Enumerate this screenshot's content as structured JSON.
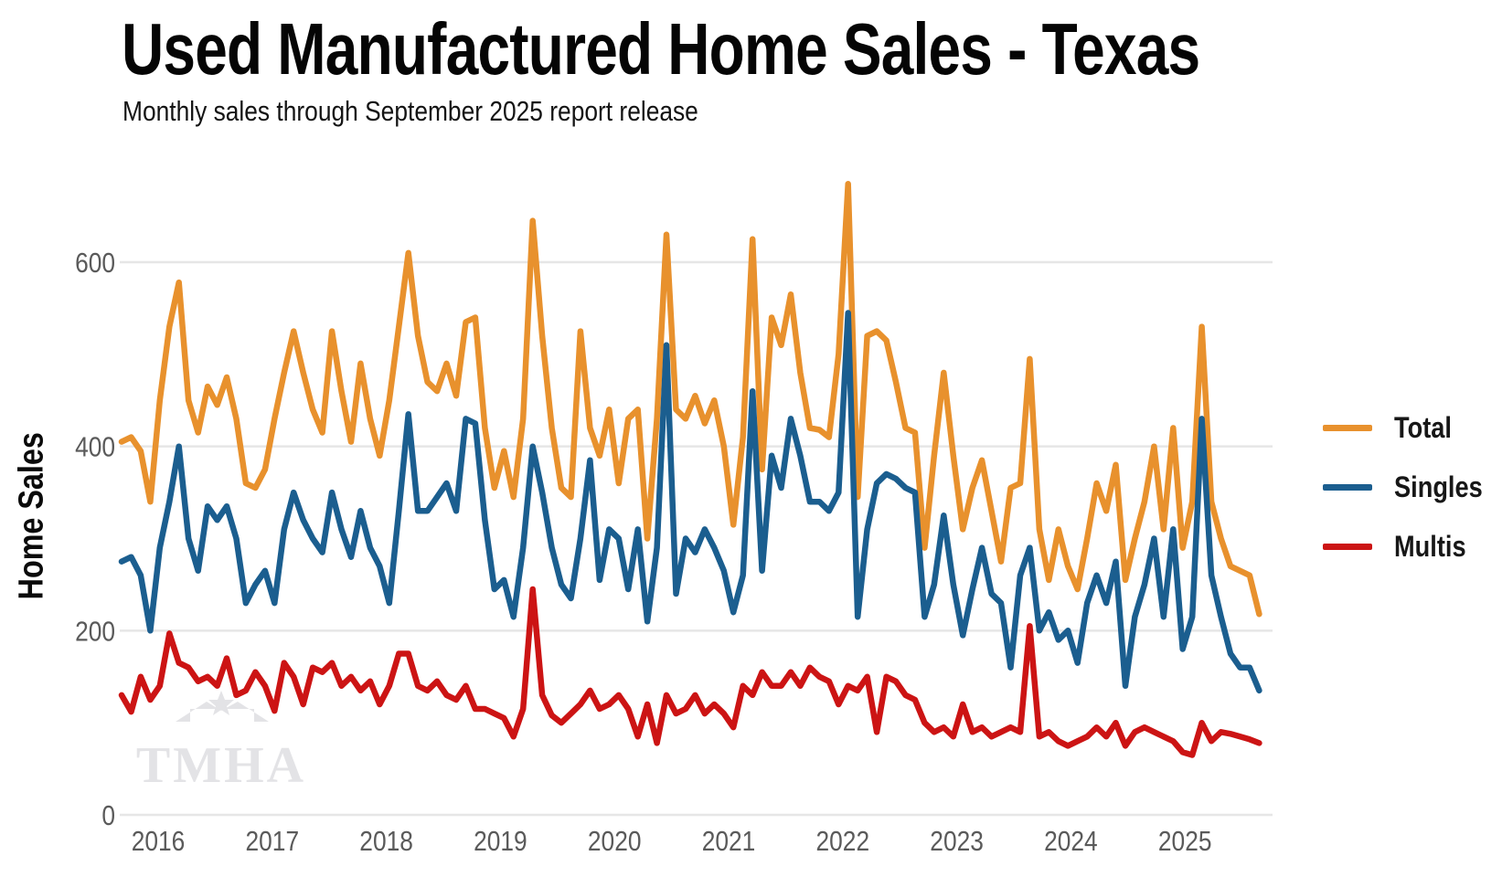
{
  "header": {
    "title": "Used Manufactured Home Sales - Texas",
    "subtitle": "Monthly sales through September 2025 report release"
  },
  "watermark": "TMHA",
  "chart_data": {
    "type": "line",
    "title": "Used Manufactured Home Sales - Texas",
    "subtitle": "Monthly sales through September 2025 report release",
    "xlabel": "",
    "ylabel": "Home Sales",
    "x_start": "2015-09",
    "x_end": "2025-08",
    "frequency": "monthly",
    "x_tick_labels": [
      "2016",
      "2017",
      "2018",
      "2019",
      "2020",
      "2021",
      "2022",
      "2023",
      "2024",
      "2025"
    ],
    "y_ticks": [
      0,
      200,
      400,
      600
    ],
    "ylim": [
      0,
      700
    ],
    "grid": "horizontal-only",
    "legend_position": "right",
    "series": [
      {
        "name": "Total",
        "color": "#E8912D",
        "values": [
          405,
          410,
          395,
          340,
          450,
          530,
          578,
          450,
          415,
          465,
          445,
          475,
          430,
          360,
          355,
          375,
          430,
          480,
          525,
          480,
          440,
          415,
          525,
          460,
          405,
          490,
          430,
          390,
          450,
          530,
          610,
          520,
          470,
          460,
          490,
          455,
          535,
          540,
          420,
          355,
          395,
          345,
          430,
          645,
          520,
          420,
          355,
          345,
          525,
          420,
          390,
          440,
          360,
          430,
          440,
          300,
          430,
          630,
          440,
          430,
          455,
          425,
          450,
          400,
          315,
          410,
          625,
          375,
          540,
          510,
          565,
          480,
          420,
          418,
          410,
          500,
          685,
          345,
          520,
          525,
          515,
          470,
          420,
          415,
          290,
          390,
          480,
          390,
          310,
          355,
          385,
          330,
          275,
          355,
          360,
          495,
          310,
          255,
          310,
          270,
          245,
          300,
          360,
          330,
          380,
          255,
          300,
          340,
          400,
          310,
          420,
          290,
          340,
          530,
          340,
          300,
          270,
          265,
          260,
          218
        ]
      },
      {
        "name": "Singles",
        "color": "#1B5E8F",
        "values": [
          275,
          280,
          260,
          200,
          290,
          340,
          400,
          300,
          265,
          335,
          320,
          335,
          300,
          230,
          250,
          265,
          230,
          310,
          350,
          320,
          300,
          285,
          350,
          310,
          280,
          330,
          290,
          270,
          230,
          330,
          435,
          330,
          330,
          345,
          360,
          330,
          430,
          425,
          320,
          245,
          255,
          215,
          290,
          400,
          350,
          290,
          250,
          235,
          300,
          385,
          255,
          310,
          300,
          245,
          310,
          210,
          290,
          510,
          240,
          300,
          285,
          310,
          290,
          265,
          220,
          260,
          460,
          265,
          390,
          355,
          430,
          390,
          340,
          340,
          330,
          350,
          545,
          215,
          310,
          360,
          370,
          365,
          355,
          350,
          215,
          250,
          325,
          250,
          195,
          245,
          290,
          240,
          230,
          160,
          260,
          290,
          200,
          220,
          190,
          200,
          165,
          230,
          260,
          230,
          275,
          140,
          215,
          250,
          300,
          215,
          310,
          180,
          215,
          430,
          260,
          215,
          175,
          160,
          160,
          135
        ]
      },
      {
        "name": "Multis",
        "color": "#CC1414",
        "values": [
          130,
          112,
          150,
          125,
          140,
          197,
          165,
          160,
          145,
          150,
          140,
          170,
          130,
          135,
          155,
          140,
          113,
          165,
          150,
          120,
          160,
          155,
          165,
          140,
          150,
          135,
          145,
          120,
          140,
          175,
          175,
          140,
          135,
          145,
          130,
          125,
          140,
          115,
          115,
          110,
          105,
          85,
          115,
          245,
          130,
          108,
          100,
          110,
          120,
          135,
          115,
          120,
          130,
          115,
          85,
          120,
          78,
          130,
          110,
          115,
          130,
          110,
          120,
          110,
          95,
          140,
          130,
          155,
          140,
          140,
          155,
          140,
          160,
          150,
          145,
          120,
          140,
          135,
          150,
          90,
          150,
          145,
          130,
          125,
          100,
          90,
          95,
          85,
          120,
          90,
          95,
          85,
          90,
          95,
          90,
          205,
          85,
          90,
          80,
          75,
          80,
          85,
          95,
          85,
          100,
          75,
          90,
          95,
          90,
          85,
          80,
          68,
          65,
          100,
          80,
          90,
          88,
          85,
          82,
          78
        ]
      }
    ]
  }
}
